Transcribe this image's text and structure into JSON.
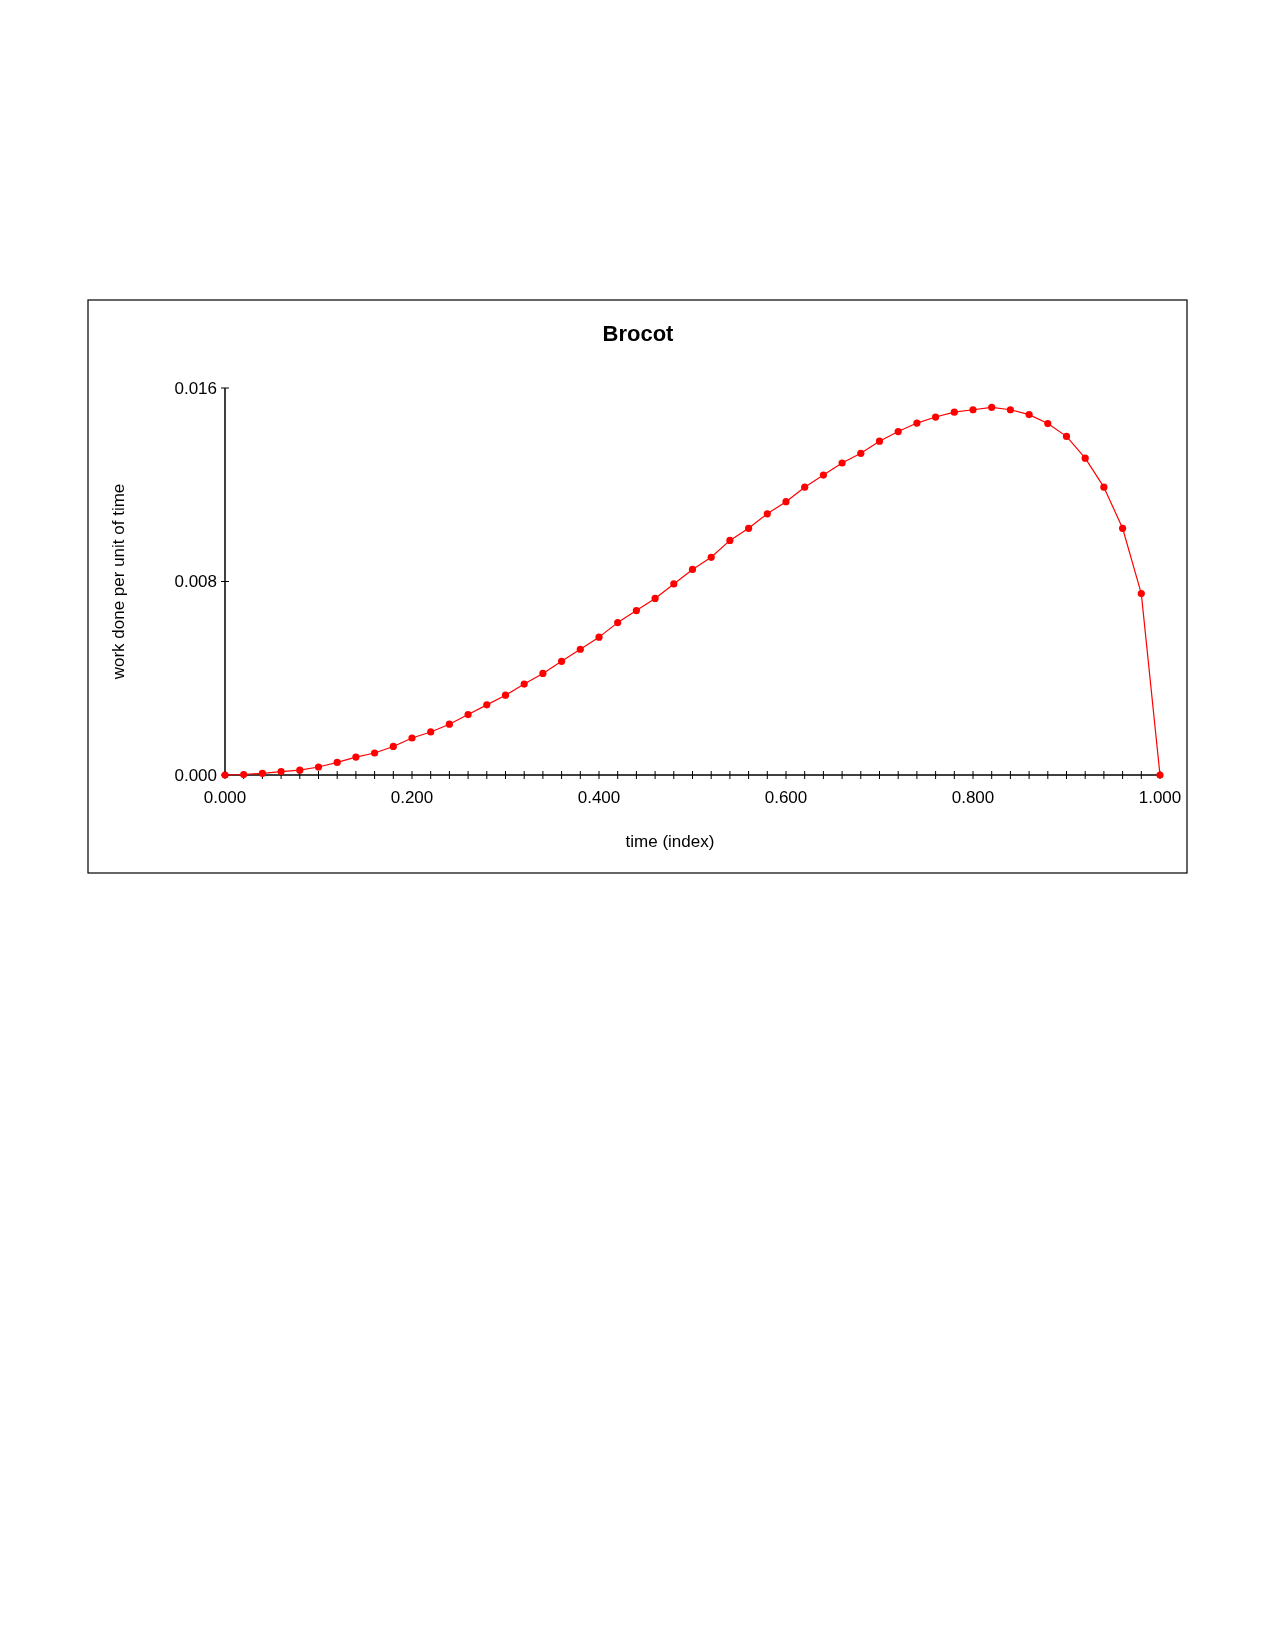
{
  "chart_data": {
    "type": "line",
    "title": "Brocot",
    "xlabel": "time (index)",
    "ylabel": "work done per unit of time",
    "x": [
      0,
      0.02,
      0.04,
      0.06,
      0.08,
      0.1,
      0.12,
      0.14,
      0.16,
      0.18,
      0.2,
      0.22,
      0.24,
      0.26,
      0.28,
      0.3,
      0.32,
      0.34,
      0.36,
      0.38,
      0.4,
      0.42,
      0.44,
      0.46,
      0.48,
      0.5,
      0.52,
      0.54,
      0.56,
      0.58,
      0.6,
      0.62,
      0.64,
      0.66,
      0.68,
      0.7,
      0.72,
      0.74,
      0.76,
      0.78,
      0.8,
      0.82,
      0.84,
      0.86,
      0.88,
      0.9,
      0.92,
      0.94,
      0.96,
      0.98,
      1.0
    ],
    "series": [
      {
        "color": "#ff0000",
        "values": [
          0,
          2e-05,
          7e-05,
          0.00014,
          0.0002,
          0.00033,
          0.00052,
          0.00074,
          0.00091,
          0.00118,
          0.00153,
          0.00178,
          0.0021,
          0.0025,
          0.0029,
          0.0033,
          0.00376,
          0.0042,
          0.0047,
          0.0052,
          0.0057,
          0.0063,
          0.0068,
          0.0073,
          0.0079,
          0.0085,
          0.009,
          0.0097,
          0.0102,
          0.0108,
          0.0113,
          0.0119,
          0.0124,
          0.0129,
          0.0133,
          0.0138,
          0.0142,
          0.01455,
          0.0148,
          0.015,
          0.0151,
          0.0152,
          0.0151,
          0.0149,
          0.01453,
          0.014,
          0.0131,
          0.0119,
          0.0102,
          0.0075,
          0
        ]
      }
    ],
    "marker": "circle",
    "line_style": "solid",
    "xlim": [
      0,
      1
    ],
    "ylim": [
      0,
      0.016
    ],
    "xticks": [
      {
        "value": 0,
        "label": "0.000"
      },
      {
        "value": 0.02,
        "label": null
      },
      {
        "value": 0.04,
        "label": null
      },
      {
        "value": 0.06,
        "label": null
      },
      {
        "value": 0.08,
        "label": null
      },
      {
        "value": 0.1,
        "label": null
      },
      {
        "value": 0.12,
        "label": null
      },
      {
        "value": 0.14,
        "label": null
      },
      {
        "value": 0.16,
        "label": null
      },
      {
        "value": 0.18,
        "label": null
      },
      {
        "value": 0.2,
        "label": "0.200"
      },
      {
        "value": 0.22,
        "label": null
      },
      {
        "value": 0.24,
        "label": null
      },
      {
        "value": 0.26,
        "label": null
      },
      {
        "value": 0.28,
        "label": null
      },
      {
        "value": 0.3,
        "label": null
      },
      {
        "value": 0.32,
        "label": null
      },
      {
        "value": 0.34,
        "label": null
      },
      {
        "value": 0.36,
        "label": null
      },
      {
        "value": 0.38,
        "label": null
      },
      {
        "value": 0.4,
        "label": "0.400"
      },
      {
        "value": 0.42,
        "label": null
      },
      {
        "value": 0.44,
        "label": null
      },
      {
        "value": 0.46,
        "label": null
      },
      {
        "value": 0.48,
        "label": null
      },
      {
        "value": 0.5,
        "label": null
      },
      {
        "value": 0.52,
        "label": null
      },
      {
        "value": 0.54,
        "label": null
      },
      {
        "value": 0.56,
        "label": null
      },
      {
        "value": 0.58,
        "label": null
      },
      {
        "value": 0.6,
        "label": "0.600"
      },
      {
        "value": 0.62,
        "label": null
      },
      {
        "value": 0.64,
        "label": null
      },
      {
        "value": 0.66,
        "label": null
      },
      {
        "value": 0.68,
        "label": null
      },
      {
        "value": 0.7,
        "label": null
      },
      {
        "value": 0.72,
        "label": null
      },
      {
        "value": 0.74,
        "label": null
      },
      {
        "value": 0.76,
        "label": null
      },
      {
        "value": 0.78,
        "label": null
      },
      {
        "value": 0.8,
        "label": "0.800"
      },
      {
        "value": 0.82,
        "label": null
      },
      {
        "value": 0.84,
        "label": null
      },
      {
        "value": 0.86,
        "label": null
      },
      {
        "value": 0.88,
        "label": null
      },
      {
        "value": 0.9,
        "label": null
      },
      {
        "value": 0.92,
        "label": null
      },
      {
        "value": 0.94,
        "label": null
      },
      {
        "value": 0.96,
        "label": null
      },
      {
        "value": 0.98,
        "label": null
      },
      {
        "value": 1.0,
        "label": "1.000"
      }
    ],
    "yticks": [
      {
        "value": 0,
        "label": "0.000"
      },
      {
        "value": 0.008,
        "label": "0.008"
      },
      {
        "value": 0.016,
        "label": "0.016"
      }
    ]
  }
}
